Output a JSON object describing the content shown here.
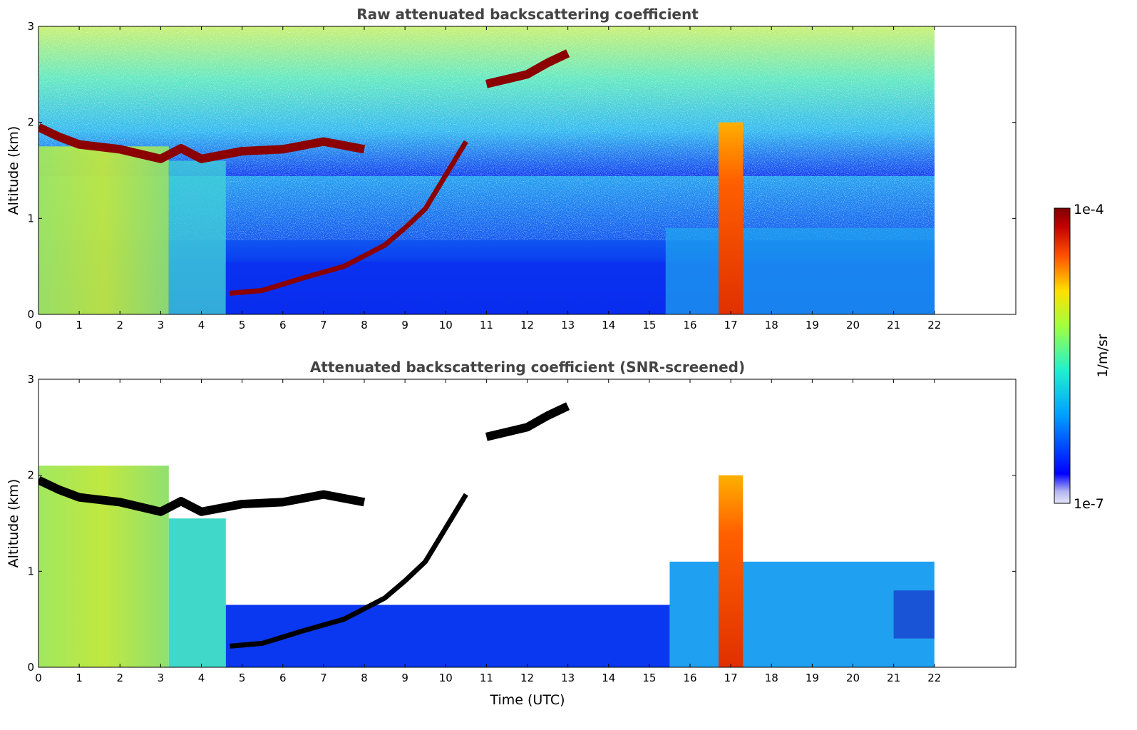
{
  "chart_data": [
    {
      "type": "heatmap",
      "title": "Raw attenuated backscattering coefficient",
      "xlabel": "",
      "ylabel": "Altitude (km)",
      "xlim": [
        0,
        24
      ],
      "ylim": [
        0,
        3
      ],
      "x_ticks": [
        0,
        1,
        2,
        3,
        4,
        5,
        6,
        7,
        8,
        9,
        10,
        11,
        12,
        13,
        14,
        15,
        16,
        17,
        18,
        19,
        20,
        21,
        22
      ],
      "y_ticks": [
        0,
        1,
        2,
        3
      ],
      "data_x_range": [
        0,
        22
      ],
      "grid": false,
      "features": {
        "boundary_layer_top_km": [
          [
            0,
            1.95
          ],
          [
            0.5,
            1.85
          ],
          [
            1,
            1.77
          ],
          [
            2,
            1.72
          ],
          [
            3,
            1.62
          ],
          [
            3.5,
            1.73
          ],
          [
            4,
            1.62
          ],
          [
            5,
            1.7
          ],
          [
            6,
            1.72
          ],
          [
            7,
            1.8
          ],
          [
            8,
            1.72
          ]
        ],
        "aerosol_rise_km": [
          [
            4.7,
            0.22
          ],
          [
            5.5,
            0.25
          ],
          [
            6.5,
            0.38
          ],
          [
            7.5,
            0.5
          ],
          [
            8.5,
            0.72
          ],
          [
            9,
            0.9
          ],
          [
            9.5,
            1.1
          ],
          [
            10,
            1.45
          ],
          [
            10.5,
            1.8
          ]
        ],
        "elevated_layer_km": [
          [
            11,
            2.4
          ],
          [
            12,
            2.5
          ],
          [
            12.5,
            2.62
          ],
          [
            13,
            2.72
          ]
        ],
        "vertical_plume": {
          "x_start": 16.7,
          "x_end": 17.3,
          "top_km": 2.0
        }
      }
    },
    {
      "type": "heatmap",
      "title": "Attenuated backscattering coefficient (SNR-screened)",
      "xlabel": "Time (UTC)",
      "ylabel": "Altitude (km)",
      "xlim": [
        0,
        24
      ],
      "ylim": [
        0,
        3
      ],
      "x_ticks": [
        0,
        1,
        2,
        3,
        4,
        5,
        6,
        7,
        8,
        9,
        10,
        11,
        12,
        13,
        14,
        15,
        16,
        17,
        18,
        19,
        20,
        21,
        22
      ],
      "y_ticks": [
        0,
        1,
        2,
        3
      ],
      "data_x_range": [
        0,
        22
      ],
      "grid": false,
      "screened_out_color": "#ffffff",
      "saturated_color": "#000000"
    }
  ],
  "colorbar": {
    "label": "1/m/sr",
    "max_label": "1e-4",
    "min_label": "1e-7",
    "scale": "log",
    "range": [
      1e-07,
      0.0001
    ],
    "colormap": "jet",
    "colors": [
      "#e6e6fa",
      "#0000ff",
      "#00c0ff",
      "#30ffc0",
      "#c0ff30",
      "#ffd000",
      "#ff4000",
      "#a00000",
      "#800000"
    ]
  }
}
